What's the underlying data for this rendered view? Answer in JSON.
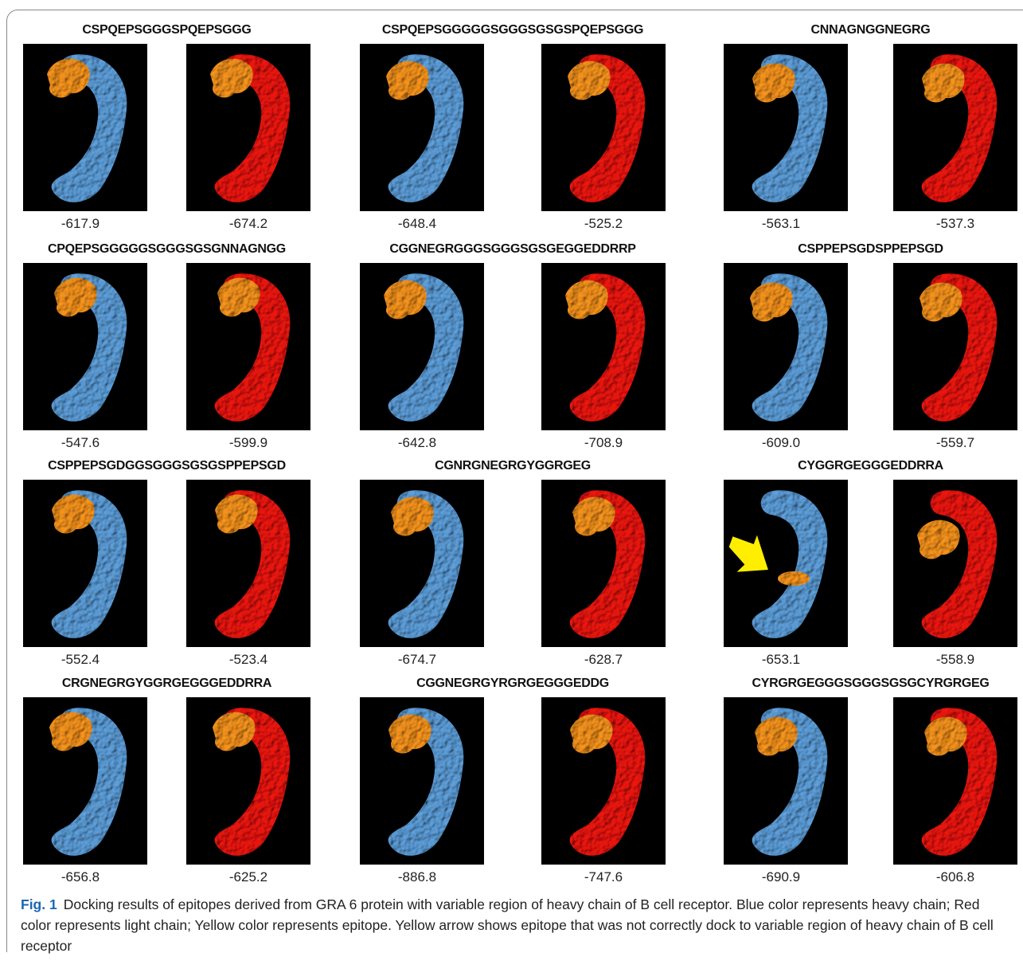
{
  "figure": {
    "panels": [
      {
        "sequence": "CSPQEPSGGGSPQEPSGGG",
        "heavy_score": "-617.9",
        "light_score": "-674.2"
      },
      {
        "sequence": "CSPQEPSGGGGGSGGGSGSGSPQEPSGGG",
        "heavy_score": "-648.4",
        "light_score": "-525.2"
      },
      {
        "sequence": "CNNAGNGGNEGRG",
        "heavy_score": "-563.1",
        "light_score": "-537.3"
      },
      {
        "sequence": "CPQEPSGGGGGSGGGSGSGNNAGNGG",
        "heavy_score": "-547.6",
        "light_score": "-599.9"
      },
      {
        "sequence": "CGGNEGRGGGSGGGSGSGEGGEDDRRP",
        "heavy_score": "-642.8",
        "light_score": "-708.9"
      },
      {
        "sequence": "CSPPEPSGDSPPEPSGD",
        "heavy_score": "-609.0",
        "light_score": "-559.7"
      },
      {
        "sequence": "CSPPEPSGDGGSGGGSGSGSPPEPSGD",
        "heavy_score": "-552.4",
        "light_score": "-523.4"
      },
      {
        "sequence": "CGNRGNEGRGYGGRGEG",
        "heavy_score": "-674.7",
        "light_score": "-628.7"
      },
      {
        "sequence": "CYGGRGEGGGEDDRRA",
        "heavy_score": "-653.1",
        "light_score": "-558.9"
      },
      {
        "sequence": "CRGNEGRGYGGRGEGGGEDDRRA",
        "heavy_score": "-656.8",
        "light_score": "-625.2"
      },
      {
        "sequence": "CGGNEGRGYRGRGEGGGEDDG",
        "heavy_score": "-886.8",
        "light_score": "-747.6"
      },
      {
        "sequence": "CYRGRGEGGGSGGGSGSGCYRGRGEG",
        "heavy_score": "-690.9",
        "light_score": "-606.8"
      }
    ],
    "caption": {
      "label": "Fig. 1",
      "text": "Docking results of epitopes derived from GRA 6 protein with variable region of heavy chain of B cell receptor. Blue color represents heavy chain; Red color represents light chain; Yellow color represents epitope. Yellow arrow shows epitope that was not correctly dock to variable region of heavy chain of B cell receptor"
    }
  }
}
